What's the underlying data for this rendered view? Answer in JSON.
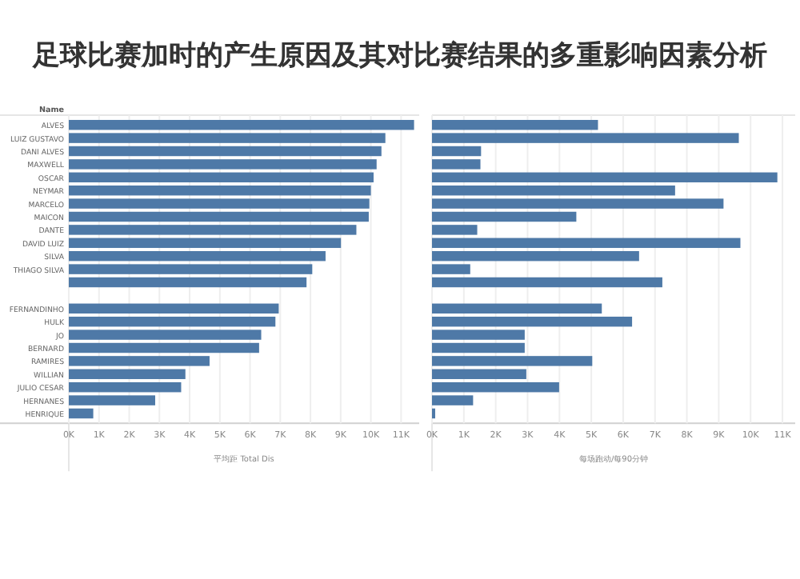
{
  "chart_data": [
    {
      "type": "bar",
      "orientation": "horizontal",
      "title": "足球比赛加时的产生原因及其对比赛结果的多重影响因素分析",
      "ylabel": "Name",
      "xlabel": "平均距 Total Dis",
      "categories": [
        "ALVES",
        "LUIZ GUSTAVO",
        "DANI ALVES",
        "MAXWELL",
        "OSCAR",
        "NEYMAR",
        "MARCELO",
        "MAICON",
        "DANTE",
        "DAVID LUIZ",
        "SILVA",
        "THIAGO SILVA",
        null,
        null,
        "FERNANDINHO",
        "HULK",
        "JO",
        "BERNARD",
        "RAMIRES",
        "WILLIAN",
        "JULIO CESAR",
        "HERNANES",
        "HENRIQUE"
      ],
      "values": [
        11430,
        10480,
        10350,
        10190,
        10090,
        10000,
        9950,
        9930,
        9520,
        9010,
        8500,
        8060,
        7870,
        null,
        6950,
        6840,
        6370,
        6300,
        4660,
        3860,
        3720,
        2860,
        810
      ],
      "color": "#4e79a7",
      "xlim": [
        0,
        11600
      ],
      "xticks": [
        {
          "value": 0,
          "label": "0K"
        },
        {
          "value": 1000,
          "label": "1K"
        },
        {
          "value": 2000,
          "label": "2K"
        },
        {
          "value": 3000,
          "label": "3K"
        },
        {
          "value": 4000,
          "label": "4K"
        },
        {
          "value": 5000,
          "label": "5K"
        },
        {
          "value": 6000,
          "label": "6K"
        },
        {
          "value": 7000,
          "label": "7K"
        },
        {
          "value": 8000,
          "label": "8K"
        },
        {
          "value": 9000,
          "label": "9K"
        },
        {
          "value": 10000,
          "label": "10K"
        },
        {
          "value": 11000,
          "label": "11K"
        }
      ],
      "grid": "x"
    },
    {
      "type": "bar",
      "orientation": "horizontal",
      "xlabel": "每场跑动/每90分钟",
      "categories": [
        null,
        null,
        null,
        null,
        null,
        null,
        null,
        null,
        null,
        null,
        null,
        null,
        null,
        null,
        null,
        null,
        null,
        null,
        null,
        null,
        null,
        null,
        null
      ],
      "values": [
        5210,
        9630,
        1540,
        1520,
        10840,
        7630,
        9150,
        4530,
        1420,
        9680,
        6500,
        1200,
        7230,
        null,
        5330,
        6280,
        2910,
        2910,
        5030,
        2960,
        3990,
        1290,
        100
      ],
      "color": "#4e79a7",
      "xlim": [
        0,
        11400
      ],
      "xticks": [
        {
          "value": 0,
          "label": "0K"
        },
        {
          "value": 1000,
          "label": "1K"
        },
        {
          "value": 2000,
          "label": "2K"
        },
        {
          "value": 3000,
          "label": "3K"
        },
        {
          "value": 4000,
          "label": "4K"
        },
        {
          "value": 5000,
          "label": "5K"
        },
        {
          "value": 6000,
          "label": "6K"
        },
        {
          "value": 7000,
          "label": "7K"
        },
        {
          "value": 8000,
          "label": "8K"
        },
        {
          "value": 9000,
          "label": "9K"
        },
        {
          "value": 10000,
          "label": "10K"
        },
        {
          "value": 11000,
          "label": "11K"
        }
      ],
      "grid": "x"
    }
  ]
}
